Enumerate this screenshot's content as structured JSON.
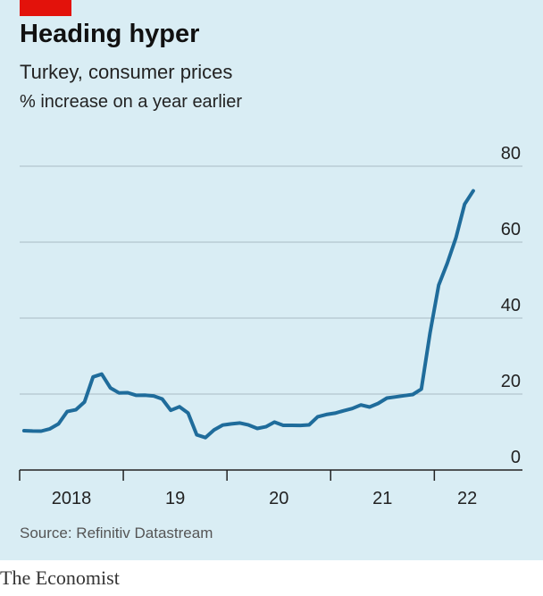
{
  "chart_data": {
    "type": "line",
    "title": "Heading hyper",
    "subtitle": "Turkey, consumer prices",
    "ylabel": "% increase on a year earlier",
    "source": "Source: Refinitiv Datastream",
    "brand": "The Economist",
    "x": [
      2018.042,
      2018.125,
      2018.208,
      2018.292,
      2018.375,
      2018.458,
      2018.542,
      2018.625,
      2018.708,
      2018.792,
      2018.875,
      2018.958,
      2019.042,
      2019.125,
      2019.208,
      2019.292,
      2019.375,
      2019.458,
      2019.542,
      2019.625,
      2019.708,
      2019.792,
      2019.875,
      2019.958,
      2020.042,
      2020.125,
      2020.208,
      2020.292,
      2020.375,
      2020.458,
      2020.542,
      2020.625,
      2020.708,
      2020.792,
      2020.875,
      2020.958,
      2021.042,
      2021.125,
      2021.208,
      2021.292,
      2021.375,
      2021.458,
      2021.542,
      2021.625,
      2021.708,
      2021.792,
      2021.875,
      2021.958,
      2022.042,
      2022.125,
      2022.208,
      2022.292,
      2022.375
    ],
    "series": [
      {
        "name": "Turkey, consumer prices",
        "color": "#1f6c9b",
        "values": [
          10.35,
          10.26,
          10.23,
          10.85,
          12.15,
          15.39,
          15.85,
          17.9,
          24.52,
          25.24,
          21.62,
          20.3,
          20.35,
          19.67,
          19.71,
          19.5,
          18.71,
          15.72,
          16.65,
          15.01,
          9.26,
          8.55,
          10.56,
          11.84,
          12.15,
          12.37,
          11.86,
          10.94,
          11.39,
          12.62,
          11.76,
          11.77,
          11.75,
          11.89,
          14.03,
          14.6,
          14.97,
          15.61,
          16.19,
          17.14,
          16.59,
          17.53,
          18.95,
          19.25,
          19.58,
          19.89,
          21.31,
          36.08,
          48.69,
          54.44,
          61.14,
          69.97,
          73.5
        ]
      }
    ],
    "xlim": [
      2018,
      2022.85
    ],
    "xticks": [
      {
        "value": 2018,
        "label": "2018"
      },
      {
        "value": 2019,
        "label": "19"
      },
      {
        "value": 2020,
        "label": "20"
      },
      {
        "value": 2021,
        "label": "21"
      },
      {
        "value": 2022,
        "label": "22"
      }
    ],
    "ylim": [
      0,
      80
    ],
    "yticks": [
      0,
      20,
      40,
      60,
      80
    ],
    "grid": true
  }
}
